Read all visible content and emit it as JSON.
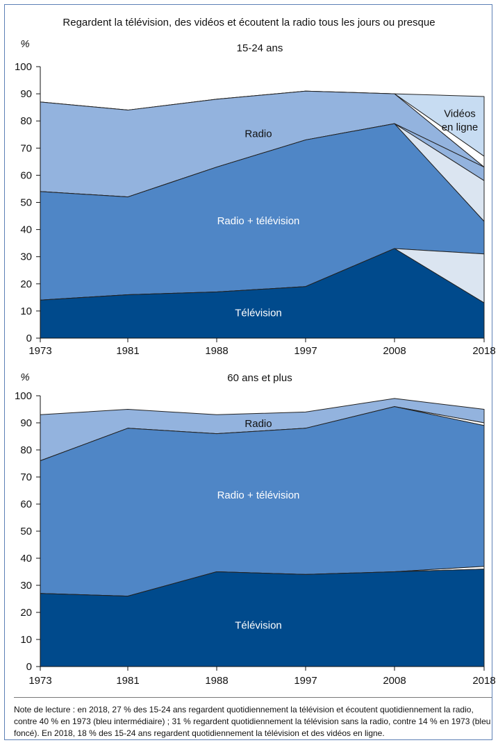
{
  "main_title": "Regardent la télévision, des vidéos et écoutent la radio tous les jours ou presque",
  "note": "Note de lecture : en 2018, 27 % des 15-24 ans regardent quotidiennement la télévision et écoutent quotidiennement la radio, contre 40 % en 1973 (bleu intermédiaire) ; 31 % regardent quotidiennement la télévision sans la radio, contre 14 % en 1973 (bleu foncé). En 2018, 18 % des 15-24 ans regardent quotidiennement la télévision et des vidéos en ligne.",
  "colors": {
    "television": "#004a8c",
    "radio_television": "#4f86c6",
    "radio": "#93b3de",
    "light": "#dbe5f1",
    "videos": "#c7dcf2",
    "white": "#ffffff",
    "stroke": "#222222"
  },
  "chart_data": [
    {
      "type": "area",
      "title": "15-24 ans",
      "ylabel": "%",
      "categories": [
        "1973",
        "1981",
        "1988",
        "1997",
        "2008",
        "2018"
      ],
      "ylim": [
        0,
        100
      ],
      "yticks": [
        0,
        10,
        20,
        30,
        40,
        50,
        60,
        70,
        80,
        90,
        100
      ],
      "boundaries": {
        "television": [
          14,
          16,
          17,
          19,
          33,
          13
        ],
        "television_plus_light": [
          14,
          16,
          17,
          19,
          33,
          31
        ],
        "radio_television": [
          54,
          52,
          63,
          73,
          79,
          43
        ],
        "radio_television_plus_light": [
          54,
          52,
          63,
          73,
          79,
          58
        ],
        "radio_television_plus_white": [
          54,
          52,
          63,
          73,
          79,
          63
        ],
        "radio_total": [
          87,
          84,
          88,
          91,
          90,
          63
        ],
        "radio_total_plus_white": [
          87,
          84,
          88,
          91,
          90,
          67
        ],
        "total": [
          87,
          84,
          88,
          91,
          90,
          89
        ]
      },
      "series": [
        {
          "name": "Télévision",
          "values": [
            14,
            16,
            17,
            19,
            33,
            13
          ]
        },
        {
          "name": "Radio + télévision",
          "values": [
            40,
            36,
            46,
            54,
            46,
            12
          ]
        },
        {
          "name": "Radio",
          "values": [
            33,
            32,
            25,
            18,
            11,
            0
          ]
        },
        {
          "name": "Vidéos en ligne",
          "values": [
            0,
            0,
            0,
            0,
            0,
            22
          ]
        }
      ],
      "labels": {
        "television": "Télévision",
        "radio_television": "Radio + télévision",
        "radio": "Radio",
        "videos_line1": "Vidéos",
        "videos_line2": "en ligne"
      }
    },
    {
      "type": "area",
      "title": "60 ans et plus",
      "ylabel": "%",
      "categories": [
        "1973",
        "1981",
        "1988",
        "1997",
        "2008",
        "2018"
      ],
      "ylim": [
        0,
        100
      ],
      "yticks": [
        0,
        10,
        20,
        30,
        40,
        50,
        60,
        70,
        80,
        90,
        100
      ],
      "boundaries": {
        "television": [
          27,
          26,
          35,
          34,
          35,
          36
        ],
        "television_plus_white": [
          27,
          26,
          35,
          34,
          35,
          37
        ],
        "radio_television": [
          76,
          88,
          86,
          88,
          96,
          89
        ],
        "radio_television_plus_white": [
          76,
          88,
          86,
          88,
          96,
          90
        ],
        "total": [
          93,
          95,
          93,
          94,
          99,
          95
        ]
      },
      "series": [
        {
          "name": "Télévision",
          "values": [
            27,
            26,
            35,
            34,
            35,
            36
          ]
        },
        {
          "name": "Radio + télévision",
          "values": [
            49,
            62,
            51,
            54,
            61,
            53
          ]
        },
        {
          "name": "Radio",
          "values": [
            17,
            7,
            7,
            6,
            3,
            5
          ]
        }
      ],
      "labels": {
        "television": "Télévision",
        "radio_television": "Radio + télévision",
        "radio": "Radio"
      }
    }
  ]
}
